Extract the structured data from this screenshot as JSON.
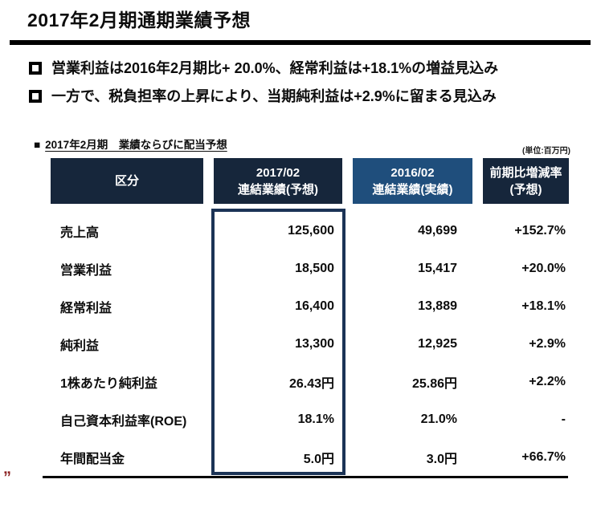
{
  "slide": {
    "title": "2017年2月期通期業績予想",
    "bullets": [
      {
        "text": "営業利益は2016年2月期比+ 20.0%、経常利益は+18.1%の増益見込み"
      },
      {
        "text": "一方で、税負担率の上昇により、当期純利益は+2.9%に留まる見込み"
      }
    ],
    "section": {
      "marker": "■",
      "heading": "2017年2月期　業績ならびに配当予想",
      "unit_note": "(単位:百万円)"
    },
    "table": {
      "columns": [
        {
          "line1": "区分",
          "line2": ""
        },
        {
          "line1": "2017/02",
          "line2": "連結業績(予想)"
        },
        {
          "line1": "2016/02",
          "line2": "連結業績(実績)"
        },
        {
          "line1": "前期比増減率",
          "line2": "(予想)"
        }
      ],
      "rows": [
        {
          "label": "売上高",
          "forecast": "125,600",
          "actual": "49,699",
          "change": "+152.7%"
        },
        {
          "label": "営業利益",
          "forecast": "18,500",
          "actual": "15,417",
          "change": "+20.0%"
        },
        {
          "label": "経常利益",
          "forecast": "16,400",
          "actual": "13,889",
          "change": "+18.1%"
        },
        {
          "label": "純利益",
          "forecast": "13,300",
          "actual": "12,925",
          "change": "+2.9%"
        },
        {
          "label": "1株あたり純利益",
          "forecast": "26.43円",
          "actual": "25.86円",
          "change": "+2.2%"
        },
        {
          "label": "自己資本利益率(ROE)",
          "forecast": "18.1%",
          "actual": "21.0%",
          "change": "-"
        },
        {
          "label": "年間配当金",
          "forecast": "5.0円",
          "actual": "3.0円",
          "change": "+66.7%"
        }
      ]
    },
    "footer_mark": "„",
    "colors": {
      "header_dark_navy": "#16263B",
      "header_light_blue": "#1F4E7C",
      "highlight_box_border": "#1B3356",
      "footer_mark_red": "#8B2222",
      "text_black": "#0d0d0d"
    }
  }
}
